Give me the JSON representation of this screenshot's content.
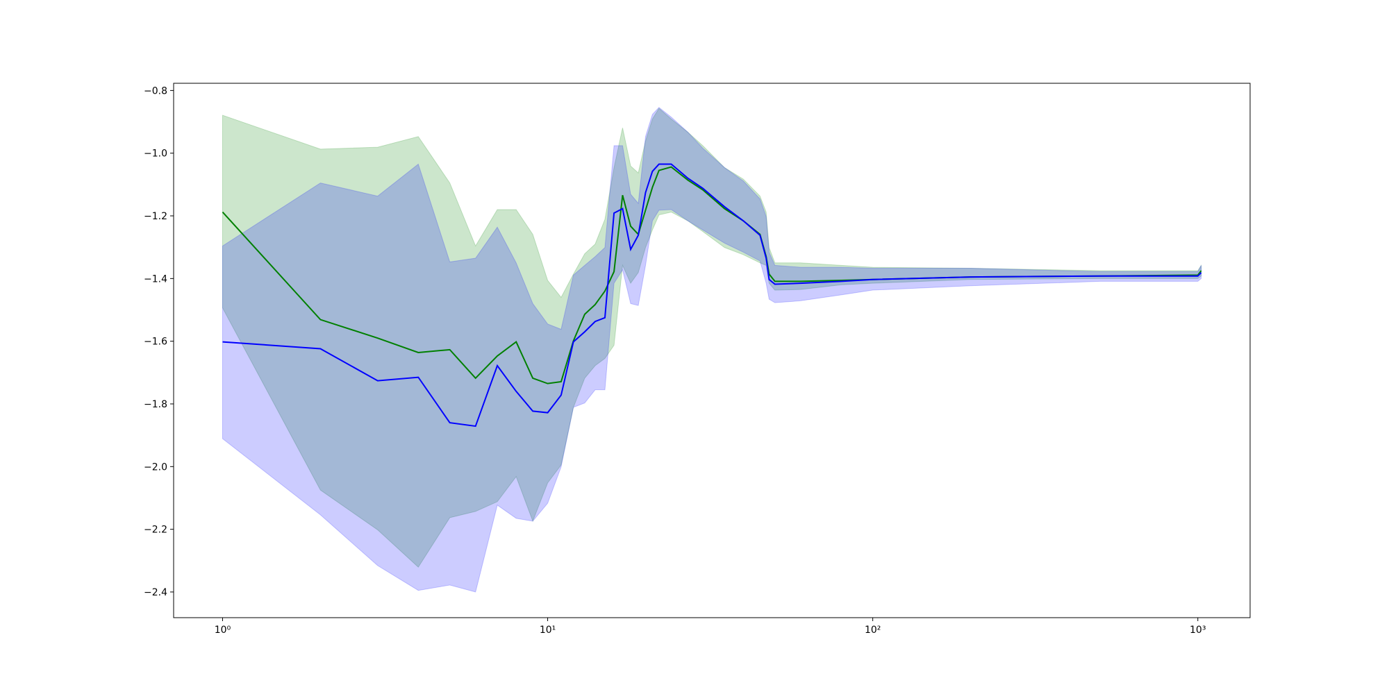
{
  "chart_data": {
    "type": "line",
    "xscale": "log",
    "xlim": [
      0.707,
      1448
    ],
    "ylim": [
      -2.482,
      -0.777
    ],
    "xticks": [
      {
        "value": 1,
        "label": "10⁰"
      },
      {
        "value": 10,
        "label": "10¹"
      },
      {
        "value": 100,
        "label": "10²"
      },
      {
        "value": 1000,
        "label": "10³"
      }
    ],
    "yticks": [
      {
        "value": -0.8,
        "label": "−0.8"
      },
      {
        "value": -1.0,
        "label": "−1.0"
      },
      {
        "value": -1.2,
        "label": "−1.2"
      },
      {
        "value": -1.4,
        "label": "−1.4"
      },
      {
        "value": -1.6,
        "label": "−1.6"
      },
      {
        "value": -1.8,
        "label": "−1.8"
      },
      {
        "value": -2.0,
        "label": "−2.0"
      },
      {
        "value": -2.2,
        "label": "−2.2"
      },
      {
        "value": -2.4,
        "label": "−2.4"
      }
    ],
    "band_opacity": 0.2,
    "x": [
      1,
      2,
      3,
      4,
      5,
      6,
      7,
      8,
      9,
      10,
      11,
      12,
      13,
      14,
      15,
      16,
      17,
      18,
      19,
      20,
      21,
      22,
      24,
      27,
      30,
      35,
      40,
      45,
      47,
      48,
      50,
      60,
      80,
      100,
      200,
      500,
      1000,
      1024
    ],
    "series": [
      {
        "color": "#008000",
        "values": [
          -1.188,
          -1.531,
          -1.59,
          -1.636,
          -1.627,
          -1.718,
          -1.647,
          -1.602,
          -1.718,
          -1.735,
          -1.729,
          -1.599,
          -1.514,
          -1.483,
          -1.44,
          -1.378,
          -1.134,
          -1.233,
          -1.259,
          -1.182,
          -1.109,
          -1.055,
          -1.044,
          -1.086,
          -1.117,
          -1.177,
          -1.216,
          -1.259,
          -1.33,
          -1.386,
          -1.409,
          -1.409,
          -1.406,
          -1.403,
          -1.395,
          -1.392,
          -1.389,
          -1.375
        ],
        "upper": [
          -0.879,
          -0.987,
          -0.981,
          -0.947,
          -1.095,
          -1.296,
          -1.18,
          -1.18,
          -1.259,
          -1.406,
          -1.46,
          -1.386,
          -1.321,
          -1.29,
          -1.211,
          -1.046,
          -0.919,
          -1.041,
          -1.063,
          -0.961,
          -0.891,
          -0.857,
          -0.891,
          -0.933,
          -0.976,
          -1.046,
          -1.083,
          -1.137,
          -1.188,
          -1.301,
          -1.35,
          -1.35,
          -1.358,
          -1.364,
          -1.367,
          -1.375,
          -1.375,
          -1.358
        ],
        "lower": [
          -1.494,
          -2.075,
          -2.202,
          -2.321,
          -2.163,
          -2.143,
          -2.112,
          -2.032,
          -2.174,
          -2.052,
          -1.995,
          -1.811,
          -1.718,
          -1.678,
          -1.655,
          -1.613,
          -1.358,
          -1.415,
          -1.381,
          -1.301,
          -1.245,
          -1.197,
          -1.188,
          -1.216,
          -1.25,
          -1.301,
          -1.324,
          -1.35,
          -1.358,
          -1.415,
          -1.437,
          -1.435,
          -1.42,
          -1.415,
          -1.403,
          -1.4,
          -1.4,
          -1.392
        ]
      },
      {
        "color": "#0000ff",
        "values": [
          -1.602,
          -1.624,
          -1.726,
          -1.715,
          -1.86,
          -1.871,
          -1.678,
          -1.76,
          -1.823,
          -1.828,
          -1.772,
          -1.602,
          -1.57,
          -1.537,
          -1.525,
          -1.191,
          -1.177,
          -1.307,
          -1.262,
          -1.126,
          -1.058,
          -1.035,
          -1.035,
          -1.08,
          -1.112,
          -1.171,
          -1.216,
          -1.262,
          -1.335,
          -1.403,
          -1.418,
          -1.415,
          -1.409,
          -1.403,
          -1.395,
          -1.392,
          -1.392,
          -1.381
        ],
        "upper": [
          -1.296,
          -1.095,
          -1.137,
          -1.035,
          -1.347,
          -1.335,
          -1.236,
          -1.35,
          -1.48,
          -1.545,
          -1.562,
          -1.389,
          -1.358,
          -1.33,
          -1.301,
          -0.976,
          -0.976,
          -1.131,
          -1.16,
          -0.947,
          -0.876,
          -0.854,
          -0.885,
          -0.933,
          -0.984,
          -1.046,
          -1.089,
          -1.146,
          -1.202,
          -1.316,
          -1.358,
          -1.364,
          -1.364,
          -1.367,
          -1.367,
          -1.378,
          -1.378,
          -1.358
        ],
        "lower": [
          -1.911,
          -2.154,
          -2.316,
          -2.395,
          -2.378,
          -2.4,
          -2.123,
          -2.165,
          -2.174,
          -2.117,
          -2.001,
          -1.811,
          -1.797,
          -1.755,
          -1.755,
          -1.415,
          -1.372,
          -1.48,
          -1.486,
          -1.358,
          -1.216,
          -1.182,
          -1.18,
          -1.216,
          -1.245,
          -1.287,
          -1.316,
          -1.344,
          -1.415,
          -1.466,
          -1.477,
          -1.471,
          -1.452,
          -1.437,
          -1.423,
          -1.409,
          -1.409,
          -1.4
        ]
      }
    ]
  }
}
